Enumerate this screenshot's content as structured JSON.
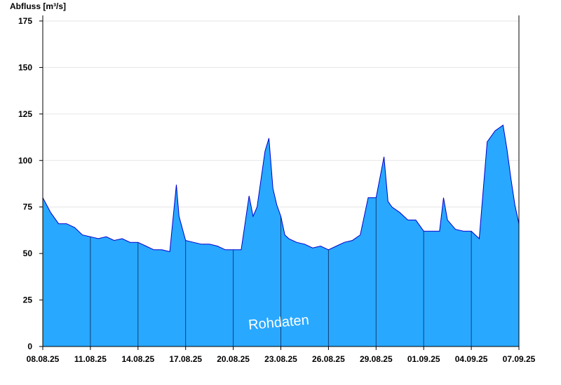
{
  "chart_data": {
    "type": "area",
    "ylabel": "Abfluss [m³/s]",
    "ylim": [
      0,
      178
    ],
    "yticks": [
      0,
      25,
      50,
      75,
      100,
      125,
      150,
      175
    ],
    "xlim": [
      "2025-08-08",
      "2025-09-07"
    ],
    "xticks": [
      "08.08.25",
      "11.08.25",
      "14.08.25",
      "17.08.25",
      "20.08.25",
      "23.08.25",
      "26.08.25",
      "29.08.25",
      "01.09.25",
      "04.09.25",
      "07.09.25"
    ],
    "grid": "horizontal",
    "colors": {
      "fill": "#29a8ff",
      "line": "#0000cc",
      "divider": "#10407a",
      "grid": "#e6e6e6"
    },
    "watermark": "Rohdaten",
    "series": [
      {
        "x": [
          "2025-08-08 00:00",
          "2025-08-08 12:00",
          "2025-08-09 00:00",
          "2025-08-09 12:00",
          "2025-08-10 00:00",
          "2025-08-10 12:00",
          "2025-08-11 00:00",
          "2025-08-11 12:00",
          "2025-08-12 00:00",
          "2025-08-12 12:00",
          "2025-08-13 00:00",
          "2025-08-13 12:00",
          "2025-08-14 00:00",
          "2025-08-14 12:00",
          "2025-08-15 00:00",
          "2025-08-15 12:00",
          "2025-08-16 00:00",
          "2025-08-16 10:00",
          "2025-08-16 14:00",
          "2025-08-17 00:00",
          "2025-08-17 12:00",
          "2025-08-18 00:00",
          "2025-08-18 12:00",
          "2025-08-19 00:00",
          "2025-08-19 12:00",
          "2025-08-20 00:00",
          "2025-08-20 12:00",
          "2025-08-21 00:00",
          "2025-08-21 06:00",
          "2025-08-21 12:00",
          "2025-08-22 00:00",
          "2025-08-22 06:00",
          "2025-08-22 12:00",
          "2025-08-22 18:00",
          "2025-08-23 00:00",
          "2025-08-23 06:00",
          "2025-08-23 12:00",
          "2025-08-24 00:00",
          "2025-08-24 12:00",
          "2025-08-25 00:00",
          "2025-08-25 12:00",
          "2025-08-26 00:00",
          "2025-08-26 12:00",
          "2025-08-27 00:00",
          "2025-08-27 12:00",
          "2025-08-28 00:00",
          "2025-08-28 12:00",
          "2025-08-29 00:00",
          "2025-08-29 12:00",
          "2025-08-29 18:00",
          "2025-08-30 00:00",
          "2025-08-30 12:00",
          "2025-08-31 00:00",
          "2025-08-31 12:00",
          "2025-09-01 00:00",
          "2025-09-01 12:00",
          "2025-09-02 00:00",
          "2025-09-02 06:00",
          "2025-09-02 12:00",
          "2025-09-03 00:00",
          "2025-09-03 12:00",
          "2025-09-04 00:00",
          "2025-09-04 12:00",
          "2025-09-05 00:00",
          "2025-09-05 12:00",
          "2025-09-06 00:00",
          "2025-09-06 06:00",
          "2025-09-06 12:00",
          "2025-09-06 18:00",
          "2025-09-07 00:00"
        ],
        "values": [
          80,
          72,
          66,
          66,
          64,
          60,
          59,
          58,
          59,
          57,
          58,
          56,
          56,
          54,
          52,
          52,
          51,
          87,
          70,
          57,
          56,
          55,
          55,
          54,
          52,
          52,
          52,
          81,
          70,
          75,
          105,
          112,
          85,
          76,
          70,
          60,
          58,
          56,
          55,
          53,
          54,
          52,
          54,
          56,
          57,
          60,
          80,
          80,
          102,
          78,
          75,
          72,
          68,
          68,
          62,
          62,
          62,
          80,
          68,
          63,
          62,
          62,
          58,
          110,
          116,
          119,
          106,
          90,
          76,
          66
        ]
      }
    ]
  }
}
